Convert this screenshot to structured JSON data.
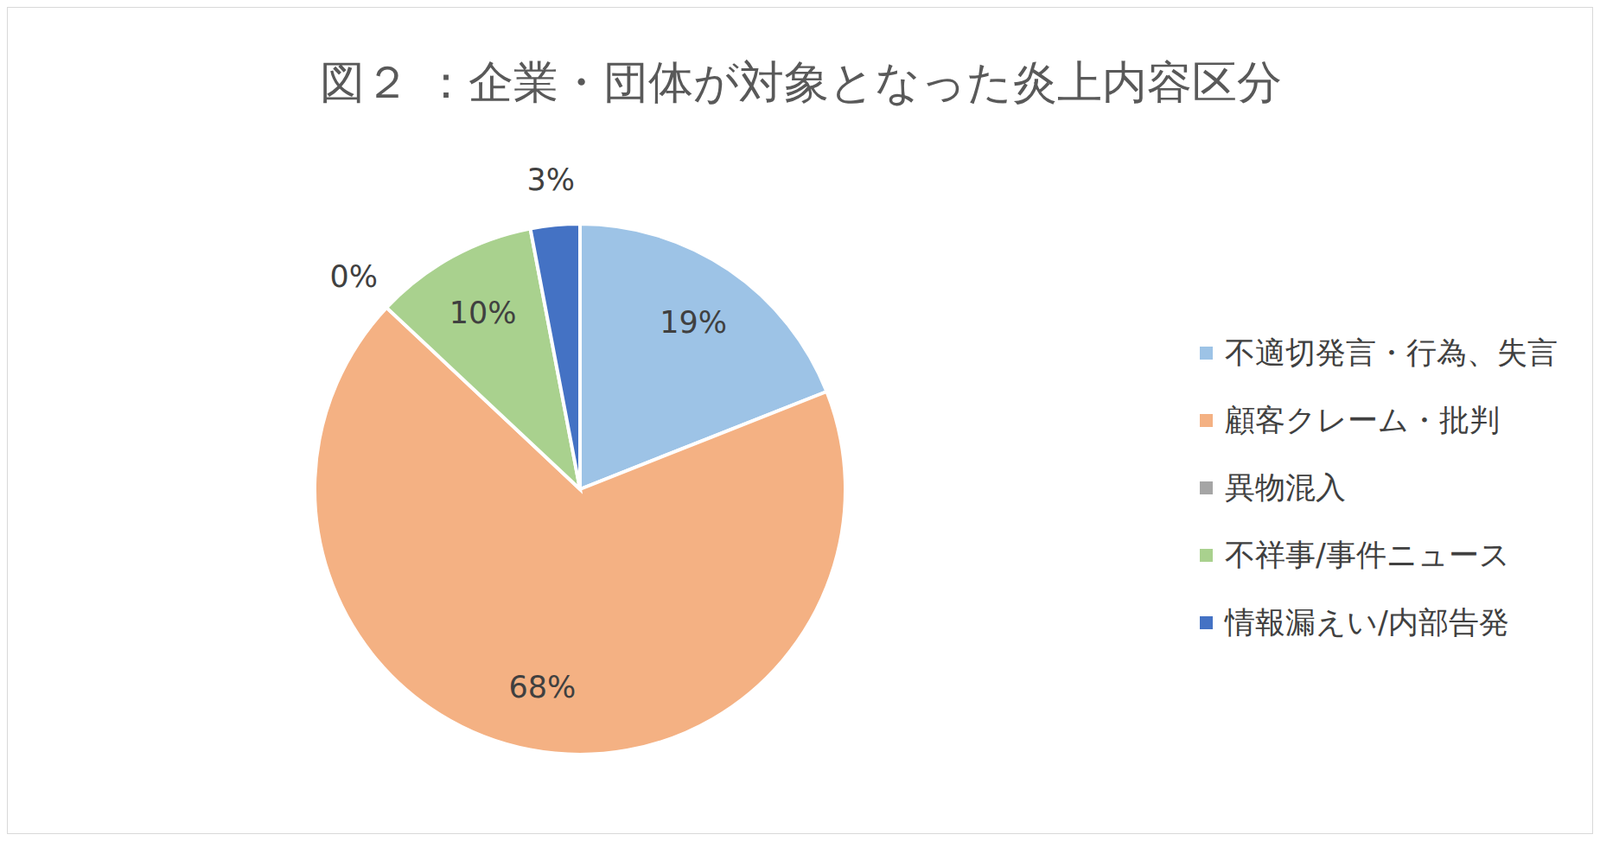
{
  "chart_data": {
    "type": "pie",
    "title": "図２ ：企業・団体が対象となった炎上内容区分",
    "categories": [
      "不適切発言・行為、失言",
      "顧客クレーム・批判",
      "異物混入",
      "不祥事/事件ニュース",
      "情報漏えい/内部告発"
    ],
    "values": [
      19,
      68,
      0,
      10,
      3
    ],
    "value_labels": [
      "19%",
      "68%",
      "0%",
      "10%",
      "3%"
    ],
    "colors": [
      "#9dc3e6",
      "#f4b183",
      "#a5a5a5",
      "#a9d18e",
      "#4472c4"
    ],
    "data_labels": true,
    "legend": "right"
  }
}
